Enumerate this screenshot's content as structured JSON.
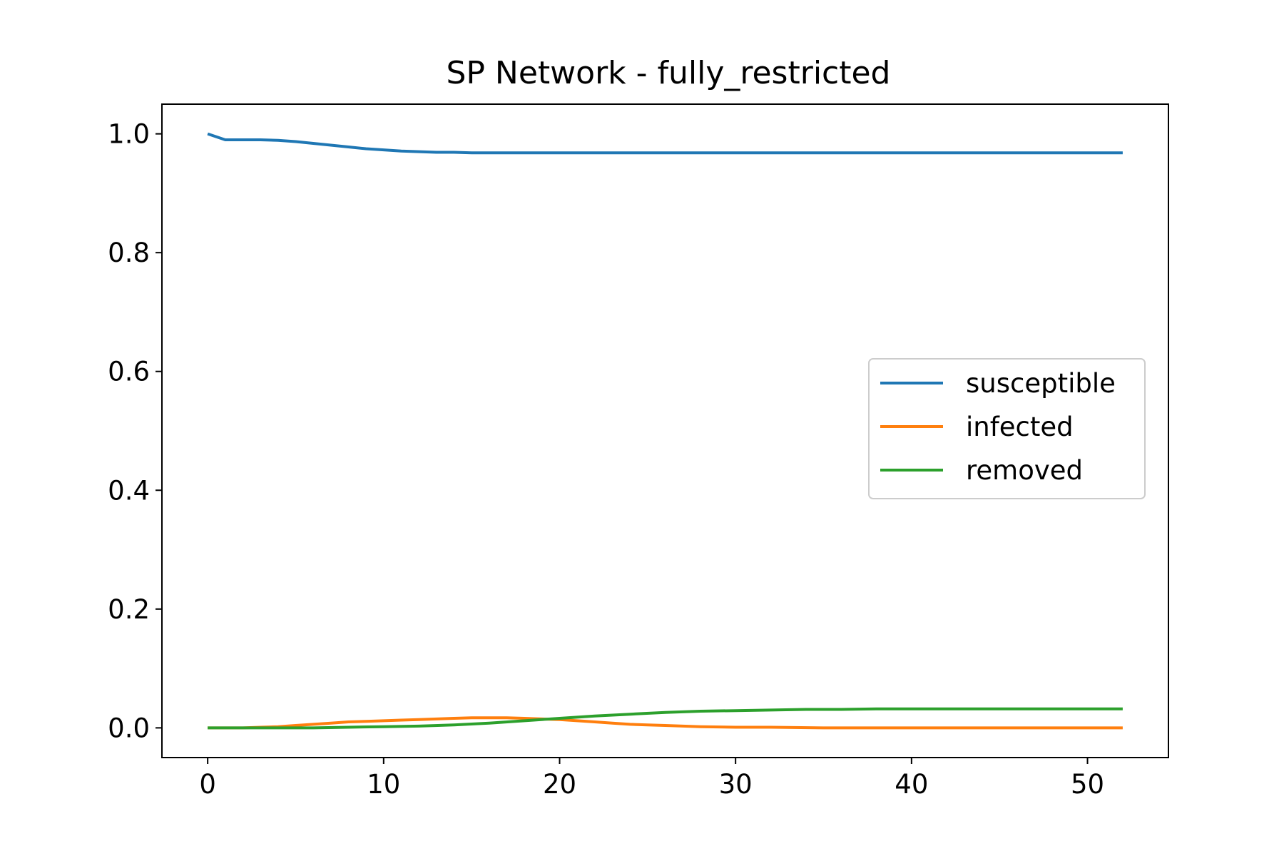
{
  "chart_data": {
    "type": "line",
    "title": "SP Network - fully_restricted",
    "xlabel": "",
    "ylabel": "",
    "xlim": [
      -2.6,
      54.6
    ],
    "ylim": [
      -0.05,
      1.05
    ],
    "xticks": [
      0,
      10,
      20,
      30,
      40,
      50
    ],
    "xtick_labels": [
      "0",
      "10",
      "20",
      "30",
      "40",
      "50"
    ],
    "yticks": [
      0.0,
      0.2,
      0.4,
      0.6,
      0.8,
      1.0
    ],
    "ytick_labels": [
      "0.0",
      "0.2",
      "0.4",
      "0.6",
      "0.8",
      "1.0"
    ],
    "grid": false,
    "legend_position": "center-right",
    "series": [
      {
        "name": "susceptible",
        "color": "#1f77b4",
        "x": [
          0,
          1,
          2,
          3,
          4,
          5,
          6,
          7,
          8,
          9,
          10,
          11,
          12,
          13,
          14,
          15,
          16,
          17,
          18,
          19,
          20,
          22,
          25,
          30,
          35,
          40,
          45,
          50,
          52
        ],
        "y": [
          1.0,
          0.99,
          0.99,
          0.99,
          0.989,
          0.987,
          0.984,
          0.981,
          0.978,
          0.975,
          0.973,
          0.971,
          0.97,
          0.969,
          0.969,
          0.968,
          0.968,
          0.968,
          0.968,
          0.968,
          0.968,
          0.968,
          0.968,
          0.968,
          0.968,
          0.968,
          0.968,
          0.968,
          0.968
        ]
      },
      {
        "name": "infected",
        "color": "#ff7f0e",
        "x": [
          0,
          1,
          2,
          3,
          4,
          5,
          6,
          7,
          8,
          9,
          10,
          11,
          12,
          13,
          14,
          15,
          16,
          17,
          18,
          19,
          20,
          21,
          22,
          23,
          24,
          25,
          26,
          27,
          28,
          30,
          32,
          35,
          40,
          45,
          50,
          52
        ],
        "y": [
          0.0,
          0.0,
          0.0,
          0.001,
          0.002,
          0.004,
          0.006,
          0.008,
          0.01,
          0.011,
          0.012,
          0.013,
          0.014,
          0.015,
          0.016,
          0.017,
          0.017,
          0.017,
          0.016,
          0.015,
          0.014,
          0.012,
          0.01,
          0.008,
          0.006,
          0.005,
          0.004,
          0.003,
          0.002,
          0.001,
          0.001,
          0.0,
          0.0,
          0.0,
          0.0,
          0.0
        ]
      },
      {
        "name": "removed",
        "color": "#2ca02c",
        "x": [
          0,
          2,
          4,
          6,
          8,
          10,
          12,
          14,
          16,
          18,
          20,
          22,
          24,
          26,
          28,
          30,
          32,
          34,
          36,
          38,
          40,
          45,
          50,
          52
        ],
        "y": [
          0.0,
          0.0,
          0.0,
          0.0,
          0.001,
          0.002,
          0.003,
          0.005,
          0.008,
          0.012,
          0.016,
          0.02,
          0.023,
          0.026,
          0.028,
          0.029,
          0.03,
          0.031,
          0.031,
          0.032,
          0.032,
          0.032,
          0.032,
          0.032
        ]
      }
    ]
  }
}
